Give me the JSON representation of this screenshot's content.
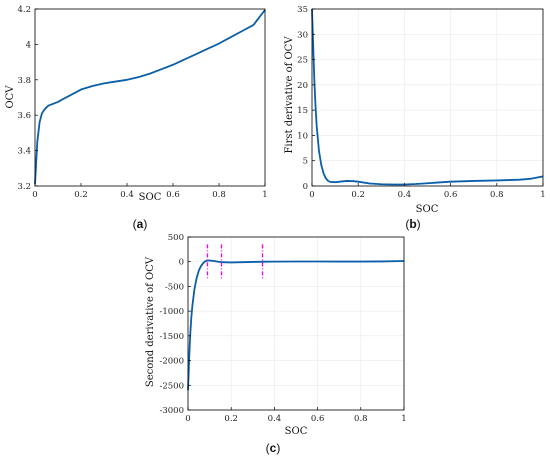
{
  "chart_data": [
    {
      "id": "a",
      "type": "line",
      "panel_label": "a",
      "xlabel": "SOC",
      "ylabel": "OCV",
      "xlim": [
        0,
        1
      ],
      "ylim": [
        3.2,
        4.2
      ],
      "xticks": [
        "0",
        "0.2",
        "0.4",
        "0.6",
        "0.8",
        "1"
      ],
      "yticks": [
        "3.2",
        "3.4",
        "3.6",
        "3.8",
        "4",
        "4.2"
      ],
      "grid": false,
      "series": [
        {
          "x": [
            0,
            0.005,
            0.01,
            0.02,
            0.03,
            0.04,
            0.05,
            0.06,
            0.08,
            0.1,
            0.12,
            0.15,
            0.2,
            0.25,
            0.3,
            0.35,
            0.4,
            0.45,
            0.5,
            0.55,
            0.6,
            0.65,
            0.7,
            0.75,
            0.8,
            0.85,
            0.9,
            0.95,
            1.0
          ],
          "y": [
            3.21,
            3.33,
            3.45,
            3.56,
            3.61,
            3.63,
            3.645,
            3.655,
            3.665,
            3.675,
            3.69,
            3.71,
            3.745,
            3.765,
            3.78,
            3.79,
            3.8,
            3.815,
            3.835,
            3.86,
            3.885,
            3.915,
            3.945,
            3.975,
            4.005,
            4.04,
            4.075,
            4.11,
            4.195
          ]
        }
      ]
    },
    {
      "id": "b",
      "type": "line",
      "panel_label": "b",
      "xlabel": "SOC",
      "ylabel": "First derivative of OCV",
      "xlim": [
        0,
        1
      ],
      "ylim": [
        0,
        35
      ],
      "xticks": [
        "0",
        "0.2",
        "0.4",
        "0.6",
        "0.8",
        "1"
      ],
      "yticks": [
        "0",
        "5",
        "10",
        "15",
        "20",
        "25",
        "30",
        "35"
      ],
      "grid": true,
      "series": [
        {
          "x": [
            0,
            0.005,
            0.01,
            0.015,
            0.02,
            0.03,
            0.04,
            0.05,
            0.06,
            0.07,
            0.08,
            0.1,
            0.12,
            0.15,
            0.18,
            0.2,
            0.25,
            0.3,
            0.35,
            0.4,
            0.45,
            0.5,
            0.55,
            0.6,
            0.7,
            0.8,
            0.9,
            0.95,
            1.0
          ],
          "y": [
            35,
            28,
            21,
            16,
            12,
            7,
            4.2,
            2.5,
            1.5,
            1.0,
            0.8,
            0.75,
            0.85,
            1.0,
            0.95,
            0.85,
            0.5,
            0.35,
            0.3,
            0.3,
            0.4,
            0.55,
            0.7,
            0.85,
            1.0,
            1.1,
            1.25,
            1.45,
            1.9
          ]
        }
      ]
    },
    {
      "id": "c",
      "type": "line",
      "panel_label": "c",
      "xlabel": "SOC",
      "ylabel": "Second derivative of OCV",
      "xlim": [
        0,
        1
      ],
      "ylim": [
        -3000,
        500
      ],
      "xticks": [
        "0",
        "0.2",
        "0.4",
        "0.6",
        "0.8",
        "1"
      ],
      "yticks": [
        "500",
        "0",
        "-500",
        "-1000",
        "-1500",
        "-2000",
        "-2500",
        "-3000"
      ],
      "grid": true,
      "series": [
        {
          "x": [
            0,
            0.005,
            0.01,
            0.015,
            0.02,
            0.03,
            0.04,
            0.05,
            0.06,
            0.07,
            0.08,
            0.09,
            0.1,
            0.12,
            0.14,
            0.16,
            0.2,
            0.25,
            0.3,
            0.35,
            0.4,
            0.5,
            0.6,
            0.7,
            0.8,
            0.9,
            1.0
          ],
          "y": [
            -2600,
            -2000,
            -1500,
            -1150,
            -900,
            -550,
            -330,
            -180,
            -90,
            -30,
            10,
            25,
            25,
            15,
            0,
            -10,
            -15,
            -10,
            -5,
            0,
            2,
            4,
            4,
            3,
            3,
            6,
            15
          ]
        }
      ],
      "markers_x": [
        0.09,
        0.155,
        0.345
      ]
    }
  ]
}
